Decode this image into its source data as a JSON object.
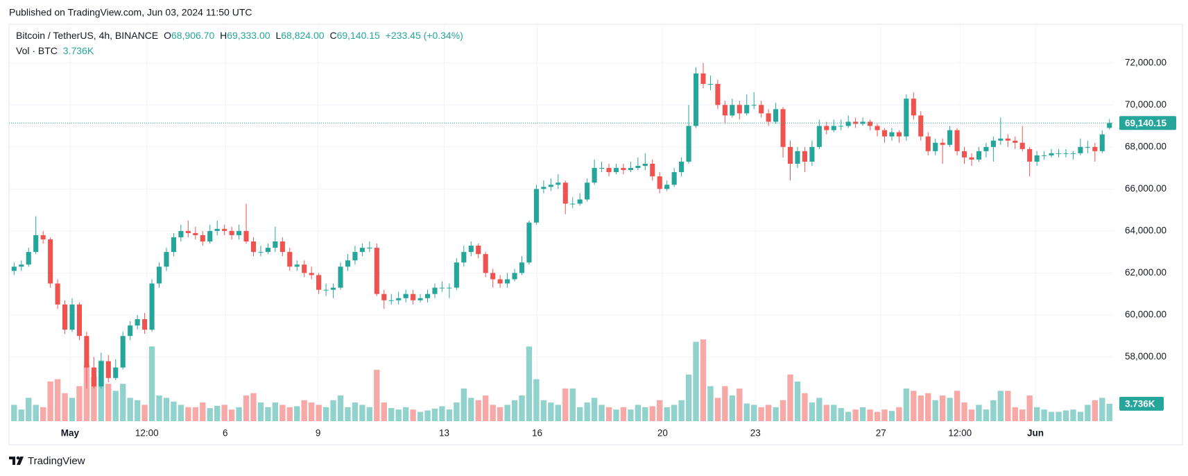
{
  "header": {
    "published": "Published on TradingView.com, Jun 03, 2024 11:50 UTC"
  },
  "footer": {
    "brand": "TradingView"
  },
  "chart_data": {
    "type": "candlestick",
    "title": "Bitcoin / TetherUS, 4h, BINANCE",
    "ohlc_legend": [
      {
        "label": "O",
        "value": "68,906.70"
      },
      {
        "label": "H",
        "value": "69,333.00"
      },
      {
        "label": "L",
        "value": "68,824.00"
      },
      {
        "label": "C",
        "value": "69,140.15"
      }
    ],
    "change": "+233.45 (+0.34%)",
    "volume_legend": {
      "label": "Vol · BTC"
    },
    "up_color": "#26a69a",
    "down_color": "#ef5350",
    "volume_up_color": "#92d2cc",
    "volume_down_color": "#f7a9a7",
    "grid": true,
    "xlim": [
      -0.7,
      151.6
    ],
    "xticks": [
      {
        "value": 7.7,
        "label": "May"
      },
      {
        "value": 18.3,
        "label": "12:00"
      },
      {
        "value": 29.1,
        "label": "6"
      },
      {
        "value": 41.9,
        "label": "9"
      },
      {
        "value": 59.3,
        "label": "13"
      },
      {
        "value": 72.1,
        "label": "16"
      },
      {
        "value": 89.4,
        "label": "20"
      },
      {
        "value": 102.2,
        "label": "23"
      },
      {
        "value": 119.5,
        "label": "27"
      },
      {
        "value": 130.4,
        "label": "12:00"
      },
      {
        "value": 140.8,
        "label": "Jun"
      }
    ],
    "ylim": [
      54944,
      73840
    ],
    "yticks": [
      {
        "value": 58000,
        "label": "58,000.00"
      },
      {
        "value": 60000,
        "label": "60,000.00"
      },
      {
        "value": 62000,
        "label": "62,000.00"
      },
      {
        "value": 64000,
        "label": "64,000.00"
      },
      {
        "value": 66000,
        "label": "66,000.00"
      },
      {
        "value": 68000,
        "label": "68,000.00"
      },
      {
        "value": 70000,
        "label": "70,000.00"
      },
      {
        "value": 72000,
        "label": "72,000.00"
      }
    ],
    "volume_ylim": [
      0,
      26000
    ],
    "last_price": {
      "value": 69140.15,
      "label": "69,140.15"
    },
    "last_volume": {
      "value": 3736,
      "label": "3.736K"
    },
    "ohlc": [
      [
        62100,
        62500,
        61900,
        62300
      ],
      [
        62300,
        62600,
        62100,
        62400
      ],
      [
        62400,
        63200,
        62300,
        63000
      ],
      [
        63000,
        64700,
        62900,
        63800
      ],
      [
        63800,
        64000,
        63400,
        63600
      ],
      [
        63600,
        63700,
        61300,
        61500
      ],
      [
        61500,
        61700,
        60300,
        60500
      ],
      [
        60500,
        60700,
        59100,
        59300
      ],
      [
        59300,
        60800,
        59200,
        60500
      ],
      [
        60500,
        60600,
        58800,
        59000
      ],
      [
        59000,
        59200,
        56500,
        57500
      ],
      [
        57500,
        58000,
        56500,
        56600
      ],
      [
        56600,
        58200,
        56500,
        57800
      ],
      [
        57800,
        58100,
        56800,
        57000
      ],
      [
        57000,
        57900,
        56900,
        57500
      ],
      [
        57500,
        59200,
        57400,
        59000
      ],
      [
        59000,
        59700,
        58800,
        59500
      ],
      [
        59500,
        60000,
        59300,
        59800
      ],
      [
        59800,
        60100,
        59100,
        59300
      ],
      [
        59300,
        61700,
        59200,
        61500
      ],
      [
        61500,
        62500,
        61300,
        62300
      ],
      [
        62300,
        63200,
        62100,
        63000
      ],
      [
        63000,
        63900,
        62800,
        63700
      ],
      [
        63700,
        64300,
        63500,
        64000
      ],
      [
        64000,
        64500,
        63700,
        63900
      ],
      [
        63900,
        64200,
        63600,
        63800
      ],
      [
        63800,
        64000,
        63300,
        63500
      ],
      [
        63500,
        64300,
        63400,
        64000
      ],
      [
        64000,
        64500,
        63800,
        64100
      ],
      [
        64100,
        64300,
        63800,
        64000
      ],
      [
        64000,
        64200,
        63600,
        63800
      ],
      [
        63800,
        64300,
        63600,
        64000
      ],
      [
        64000,
        65300,
        63400,
        63500
      ],
      [
        63500,
        63700,
        62800,
        63000
      ],
      [
        63000,
        63300,
        62800,
        63000
      ],
      [
        63000,
        63400,
        62900,
        63200
      ],
      [
        63200,
        64200,
        63000,
        63500
      ],
      [
        63500,
        63700,
        62800,
        63000
      ],
      [
        63000,
        63200,
        62100,
        62300
      ],
      [
        62300,
        62600,
        62100,
        62400
      ],
      [
        62400,
        62600,
        61800,
        62000
      ],
      [
        62000,
        62300,
        61700,
        61900
      ],
      [
        61900,
        62000,
        61000,
        61200
      ],
      [
        61200,
        61500,
        60900,
        61200
      ],
      [
        61200,
        61500,
        60800,
        61300
      ],
      [
        61300,
        62500,
        61200,
        62300
      ],
      [
        62300,
        62900,
        62100,
        62600
      ],
      [
        62600,
        63300,
        62400,
        63000
      ],
      [
        63000,
        63400,
        62800,
        63200
      ],
      [
        63200,
        63500,
        63000,
        63200
      ],
      [
        63200,
        63400,
        60900,
        61000
      ],
      [
        61000,
        61200,
        60300,
        60700
      ],
      [
        60700,
        61000,
        60500,
        60700
      ],
      [
        60700,
        61100,
        60500,
        60800
      ],
      [
        60800,
        61200,
        60600,
        61000
      ],
      [
        61000,
        61200,
        60500,
        60700
      ],
      [
        60700,
        61000,
        60600,
        60800
      ],
      [
        60800,
        61200,
        60600,
        61000
      ],
      [
        61000,
        61500,
        60800,
        61300
      ],
      [
        61300,
        61600,
        61100,
        61300
      ],
      [
        61300,
        61500,
        60800,
        61300
      ],
      [
        61300,
        62700,
        61200,
        62500
      ],
      [
        62500,
        63300,
        62300,
        63000
      ],
      [
        63000,
        63500,
        62800,
        63300
      ],
      [
        63300,
        63400,
        62700,
        62900
      ],
      [
        62900,
        63000,
        61800,
        62000
      ],
      [
        62000,
        62200,
        61300,
        61700
      ],
      [
        61700,
        61900,
        61300,
        61500
      ],
      [
        61500,
        62000,
        61300,
        61700
      ],
      [
        61700,
        62200,
        61600,
        62000
      ],
      [
        62000,
        62800,
        61900,
        62500
      ],
      [
        62500,
        64500,
        62400,
        64400
      ],
      [
        64400,
        66200,
        64300,
        66000
      ],
      [
        66000,
        66400,
        65800,
        66100
      ],
      [
        66100,
        66500,
        65900,
        66200
      ],
      [
        66200,
        66700,
        66000,
        66300
      ],
      [
        66300,
        66400,
        64800,
        65300
      ],
      [
        65300,
        65600,
        65100,
        65300
      ],
      [
        65300,
        65800,
        65200,
        65500
      ],
      [
        65500,
        66500,
        65400,
        66300
      ],
      [
        66300,
        67400,
        66200,
        67000
      ],
      [
        67000,
        67300,
        66800,
        67000
      ],
      [
        67000,
        67200,
        66600,
        66800
      ],
      [
        66800,
        67200,
        66700,
        67000
      ],
      [
        67000,
        67200,
        66700,
        66900
      ],
      [
        66900,
        67300,
        66800,
        67000
      ],
      [
        67000,
        67500,
        66900,
        67100
      ],
      [
        67100,
        67700,
        66900,
        67200
      ],
      [
        67200,
        67400,
        66400,
        66600
      ],
      [
        66600,
        66800,
        65800,
        66000
      ],
      [
        66000,
        66400,
        65900,
        66200
      ],
      [
        66200,
        67000,
        66100,
        66800
      ],
      [
        66800,
        67500,
        66600,
        67300
      ],
      [
        67300,
        70000,
        67200,
        69000
      ],
      [
        69000,
        71800,
        68900,
        71500
      ],
      [
        71500,
        72000,
        70800,
        71000
      ],
      [
        71000,
        71400,
        70700,
        71000
      ],
      [
        71000,
        71200,
        69800,
        70000
      ],
      [
        70000,
        70200,
        69100,
        69500
      ],
      [
        69500,
        70300,
        69400,
        70000
      ],
      [
        70000,
        70200,
        69300,
        69600
      ],
      [
        69600,
        70500,
        69500,
        70000
      ],
      [
        70000,
        70600,
        69800,
        70000
      ],
      [
        70000,
        70200,
        69400,
        69600
      ],
      [
        69600,
        69800,
        69000,
        69200
      ],
      [
        69200,
        70100,
        69100,
        69800
      ],
      [
        69800,
        69900,
        67500,
        68000
      ],
      [
        68000,
        68300,
        66400,
        67200
      ],
      [
        67200,
        68000,
        67000,
        67800
      ],
      [
        67800,
        68000,
        66800,
        67300
      ],
      [
        67300,
        68300,
        67100,
        68000
      ],
      [
        68000,
        69300,
        67900,
        69000
      ],
      [
        69000,
        69200,
        68600,
        68800
      ],
      [
        68800,
        69300,
        68700,
        69000
      ],
      [
        69000,
        69300,
        68800,
        69000
      ],
      [
        69000,
        69500,
        68900,
        69200
      ],
      [
        69200,
        69400,
        68900,
        69100
      ],
      [
        69100,
        69400,
        69000,
        69200
      ],
      [
        69200,
        69300,
        68800,
        69000
      ],
      [
        69000,
        69100,
        68500,
        68800
      ],
      [
        68800,
        68900,
        68200,
        68500
      ],
      [
        68500,
        68900,
        68300,
        68700
      ],
      [
        68700,
        68800,
        68200,
        68500
      ],
      [
        68500,
        70500,
        68300,
        70300
      ],
      [
        70300,
        70600,
        69300,
        69500
      ],
      [
        69500,
        69700,
        68300,
        68500
      ],
      [
        68500,
        68700,
        67600,
        67800
      ],
      [
        67800,
        68400,
        67600,
        68200
      ],
      [
        68200,
        68400,
        67200,
        68100
      ],
      [
        68100,
        69000,
        68000,
        68800
      ],
      [
        68800,
        68900,
        67600,
        67800
      ],
      [
        67800,
        68000,
        67200,
        67500
      ],
      [
        67500,
        67700,
        67100,
        67400
      ],
      [
        67400,
        68000,
        67300,
        67800
      ],
      [
        67800,
        68200,
        67500,
        68000
      ],
      [
        68000,
        68500,
        67300,
        68300
      ],
      [
        68300,
        69400,
        68100,
        68400
      ],
      [
        68400,
        68600,
        68000,
        68300
      ],
      [
        68300,
        68500,
        67900,
        68200
      ],
      [
        68200,
        69000,
        67800,
        67900
      ],
      [
        67900,
        68000,
        66600,
        67300
      ],
      [
        67300,
        67800,
        67100,
        67600
      ],
      [
        67600,
        67800,
        67400,
        67600
      ],
      [
        67600,
        67900,
        67500,
        67700
      ],
      [
        67700,
        67900,
        67500,
        67700
      ],
      [
        67700,
        67900,
        67500,
        67700
      ],
      [
        67700,
        67800,
        67400,
        67700
      ],
      [
        67700,
        68400,
        67600,
        68000
      ],
      [
        68000,
        68300,
        67700,
        68000
      ],
      [
        68000,
        68200,
        67300,
        67800
      ],
      [
        67800,
        68800,
        67700,
        68600
      ],
      [
        68906.7,
        69333,
        68824,
        69140.15
      ]
    ],
    "volume": [
      3500,
      2500,
      5000,
      3500,
      3000,
      8500,
      9000,
      6000,
      5000,
      7500,
      12000,
      9500,
      13000,
      8000,
      6500,
      8000,
      5000,
      4500,
      3500,
      16000,
      5500,
      5000,
      4200,
      3500,
      3000,
      3000,
      4000,
      2800,
      3300,
      3500,
      2500,
      3000,
      5500,
      6000,
      4000,
      3000,
      4000,
      3500,
      3000,
      3200,
      4500,
      4000,
      3500,
      3000,
      4500,
      5500,
      3000,
      4000,
      3500,
      3000,
      11000,
      4000,
      2800,
      2500,
      3000,
      2500,
      2000,
      2300,
      2700,
      3200,
      2500,
      4000,
      7000,
      5000,
      4500,
      5500,
      3500,
      3000,
      3500,
      4500,
      5500,
      16000,
      9000,
      4500,
      4000,
      3500,
      7000,
      7000,
      3000,
      4000,
      5000,
      3500,
      3000,
      2500,
      3000,
      2500,
      3500,
      3000,
      3200,
      4500,
      3000,
      3500,
      4500,
      10000,
      17000,
      17500,
      7500,
      5000,
      7500,
      5500,
      7000,
      3800,
      3500,
      3000,
      3500,
      3000,
      4500,
      10000,
      8500,
      6000,
      4000,
      5000,
      3500,
      3500,
      2800,
      2000,
      2500,
      3000,
      2500,
      2000,
      2500,
      2200,
      3000,
      7000,
      6500,
      5500,
      6000,
      4500,
      5500,
      5000,
      6500,
      4000,
      2500,
      3500,
      2500,
      4500,
      6500,
      6500,
      3000,
      2500,
      5500,
      3000,
      2500,
      2000,
      2000,
      2300,
      2500,
      2000,
      3500,
      4500,
      5000,
      3736
    ]
  }
}
